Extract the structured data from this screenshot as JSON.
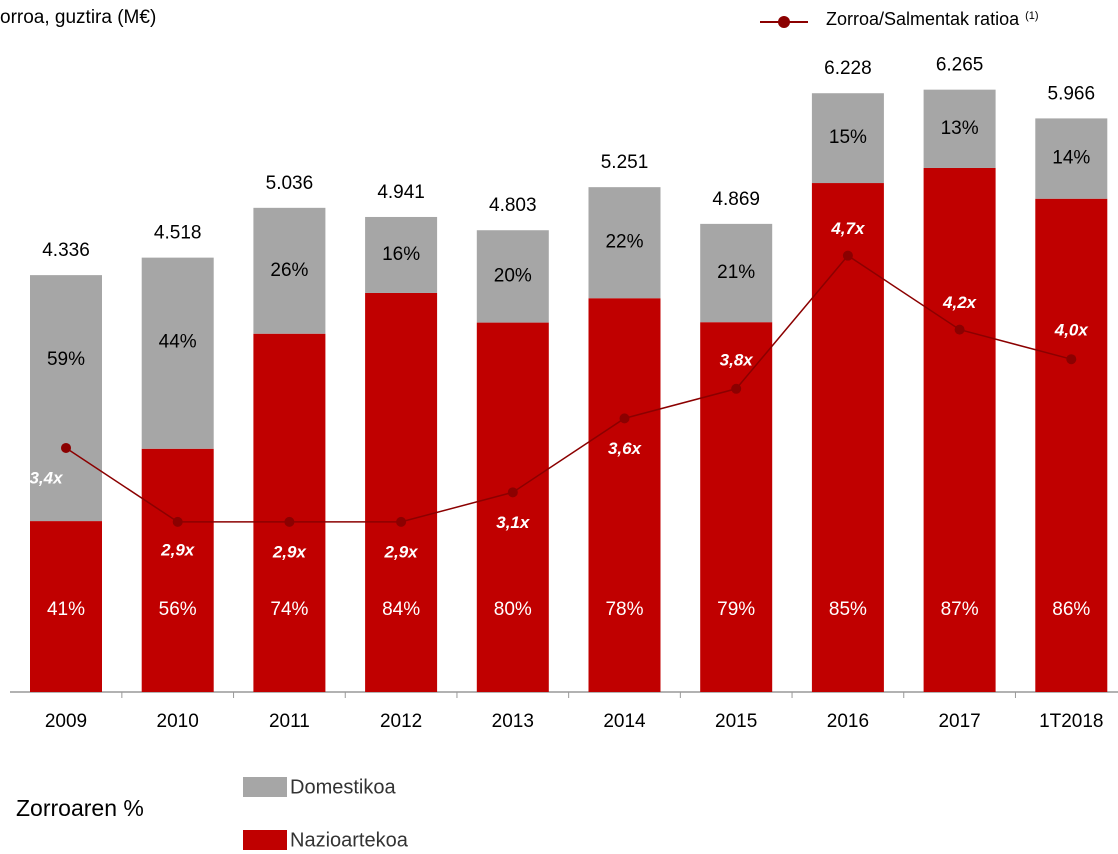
{
  "chart_data": {
    "type": "stacked-bar-line",
    "title": "orroa, guztira (M€)",
    "categories": [
      "2009",
      "2010",
      "2011",
      "2012",
      "2013",
      "2014",
      "2015",
      "2016",
      "2017",
      "1T2018"
    ],
    "totals": {
      "values": [
        4336,
        4518,
        5036,
        4941,
        4803,
        5251,
        4869,
        6228,
        6265,
        5966
      ],
      "value_labels": [
        "4.336",
        "4.518",
        "5.036",
        "4.941",
        "4.803",
        "5.251",
        "4.869",
        "6.228",
        "6.265",
        "5.966"
      ]
    },
    "series": [
      {
        "name": "Nazioartekoa",
        "color": "#c00000",
        "values": [
          41,
          56,
          74,
          84,
          80,
          78,
          79,
          85,
          87,
          86
        ],
        "value_labels": [
          "41%",
          "56%",
          "74%",
          "84%",
          "80%",
          "78%",
          "79%",
          "85%",
          "87%",
          "86%"
        ]
      },
      {
        "name": "Domestikoa",
        "color": "#a6a6a6",
        "values": [
          59,
          44,
          26,
          16,
          20,
          22,
          21,
          15,
          13,
          14
        ],
        "value_labels": [
          "59%",
          "44%",
          "26%",
          "16%",
          "20%",
          "22%",
          "21%",
          "15%",
          "13%",
          "14%"
        ]
      },
      {
        "name": "Zorroa/Salmentak ratioa",
        "name_note": "(1)",
        "color": "#8b0000",
        "axis": "y2",
        "values": [
          3.4,
          2.9,
          2.9,
          2.9,
          3.1,
          3.6,
          3.8,
          4.7,
          4.2,
          4.0
        ],
        "value_labels": [
          "3,4x",
          "2,9x",
          "2,9x",
          "2,9x",
          "3,1x",
          "3,6x",
          "3,8x",
          "4,7x",
          "4,2x",
          "4,0x"
        ]
      }
    ],
    "legend_title": "Zorroaren %",
    "ylim": [
      0,
      7000
    ],
    "y2lim": [
      1.75,
      6.3
    ]
  }
}
